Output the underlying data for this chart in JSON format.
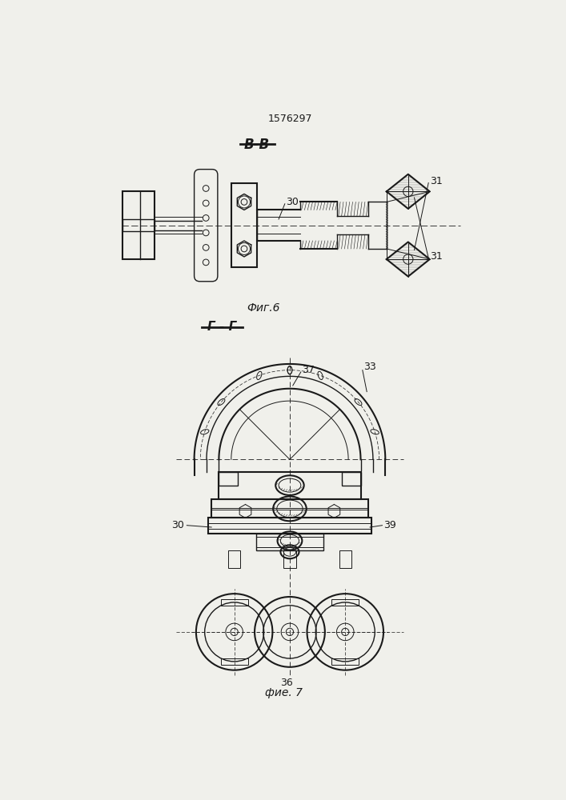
{
  "title": "1576297",
  "fig6_label": "Фиг.6",
  "fig7_label": "фие. 7",
  "section_bb": "B-B",
  "section_gg": "Г - Г",
  "bg_color": "#f0f0eb",
  "line_color": "#1a1a1a"
}
